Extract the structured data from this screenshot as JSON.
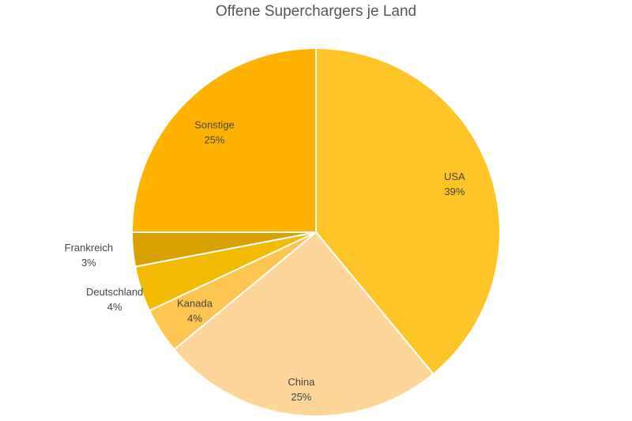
{
  "chart_data": {
    "type": "pie",
    "title": "Offene Superchargers je Land",
    "slices": [
      {
        "label": "USA",
        "value": 39,
        "value_label": "39%",
        "color": "#FFC526"
      },
      {
        "label": "China",
        "value": 25,
        "value_label": "25%",
        "color": "#FFD699"
      },
      {
        "label": "Kanada",
        "value": 4,
        "value_label": "4%",
        "color": "#FFC551"
      },
      {
        "label": "Deutschland",
        "value": 4,
        "value_label": "4%",
        "color": "#F2BA00"
      },
      {
        "label": "Frankreich",
        "value": 3,
        "value_label": "3%",
        "color": "#D8A000"
      },
      {
        "label": "Sonstige",
        "value": 25,
        "value_label": "25%",
        "color": "#FFB300"
      }
    ],
    "direction": "clockwise",
    "start": "12 o'clock",
    "legend": "none"
  }
}
